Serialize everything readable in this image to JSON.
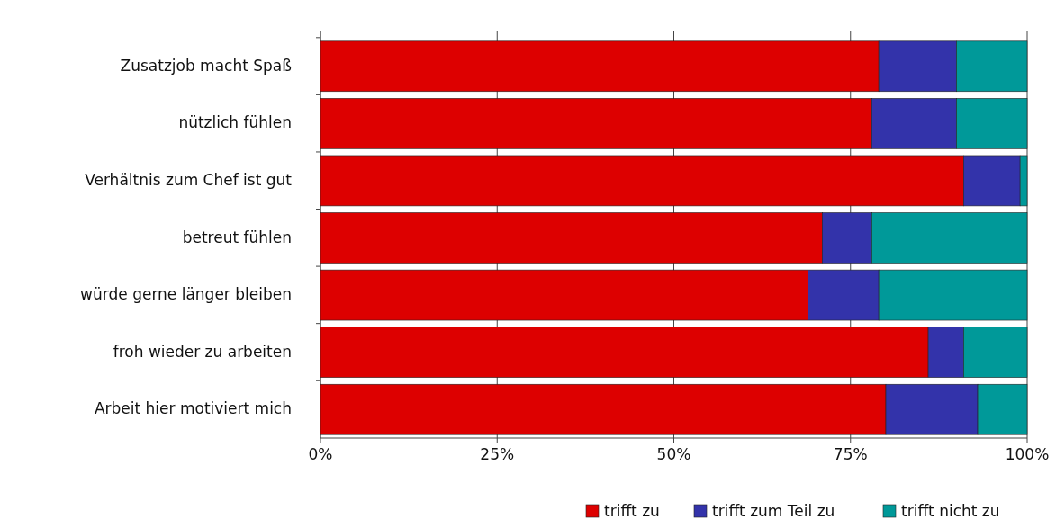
{
  "chart_data": {
    "type": "bar",
    "orientation": "horizontal",
    "stacked": true,
    "categories": [
      "Zusatzjob macht Spaß",
      "nützlich fühlen",
      "Verhältnis zum Chef ist gut",
      "betreut fühlen",
      "würde gerne länger bleiben",
      "froh wieder zu arbeiten",
      "Arbeit hier motiviert mich"
    ],
    "series": [
      {
        "name": "trifft zu",
        "color": "#dd0000",
        "values": [
          79,
          78,
          91,
          71,
          69,
          86,
          80
        ]
      },
      {
        "name": "trifft zum Teil zu",
        "color": "#3333aa",
        "values": [
          11,
          12,
          8,
          7,
          10,
          5,
          13
        ]
      },
      {
        "name": "trifft nicht zu",
        "color": "#009999",
        "values": [
          10,
          10,
          1,
          22,
          21,
          9,
          7
        ]
      }
    ],
    "xlim": [
      0,
      100
    ],
    "xticks": [
      {
        "value": 0,
        "label": "0%"
      },
      {
        "value": 25,
        "label": "25%"
      },
      {
        "value": 50,
        "label": "50%"
      },
      {
        "value": 75,
        "label": "75%"
      },
      {
        "value": 100,
        "label": "100%"
      }
    ],
    "grid": "x",
    "legend": "bottom"
  }
}
